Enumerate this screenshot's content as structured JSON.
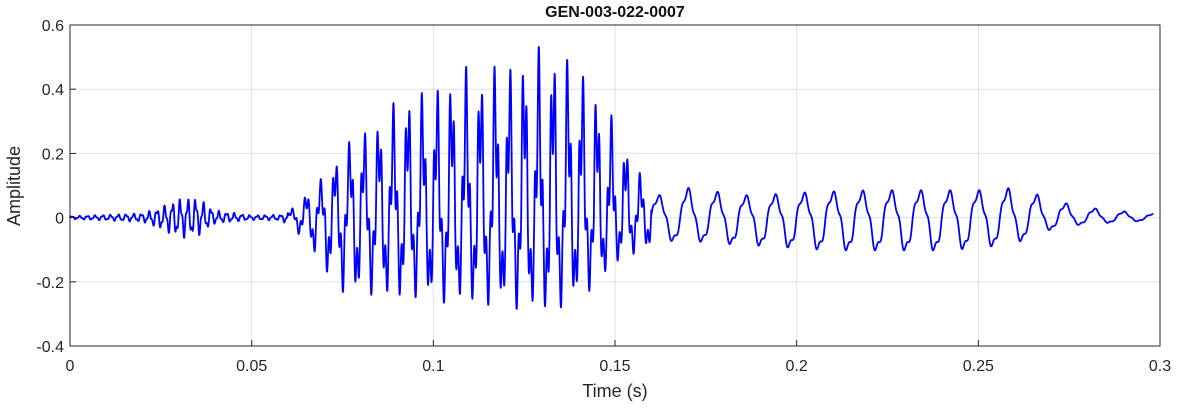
{
  "chart_data": {
    "type": "line",
    "title": "GEN-003-022-0007",
    "xlabel": "Time (s)",
    "ylabel": "Amplitude",
    "xlim": [
      0,
      0.3
    ],
    "ylim": [
      -0.4,
      0.6
    ],
    "x_ticks": [
      0,
      0.05,
      0.1,
      0.15,
      0.2,
      0.25,
      0.3
    ],
    "x_tick_labels": [
      "0",
      "0.05",
      "0.1",
      "0.15",
      "0.2",
      "0.25",
      "0.3"
    ],
    "y_ticks": [
      -0.4,
      -0.2,
      0,
      0.2,
      0.4,
      0.6
    ],
    "y_tick_labels": [
      "-0.4",
      "-0.2",
      "0",
      "0.2",
      "0.4",
      "0.6"
    ],
    "grid": true,
    "series": [
      {
        "color": "#0000ff",
        "x": [
          0,
          0.01,
          0.02,
          0.025,
          0.03,
          0.035,
          0.04,
          0.05,
          0.058,
          0.062,
          0.066,
          0.07,
          0.074,
          0.078,
          0.082,
          0.086,
          0.09,
          0.094,
          0.098,
          0.102,
          0.106,
          0.11,
          0.114,
          0.118,
          0.122,
          0.126,
          0.13,
          0.134,
          0.138,
          0.142,
          0.146,
          0.15,
          0.154,
          0.158,
          0.162,
          0.166,
          0.17,
          0.175,
          0.18,
          0.185,
          0.19,
          0.2,
          0.21,
          0.22,
          0.23,
          0.24,
          0.25,
          0.26,
          0.265,
          0.27,
          0.28,
          0.29,
          0.298
        ],
        "y": [
          0.005,
          0.01,
          0.015,
          0.035,
          0.065,
          0.07,
          0.025,
          0.008,
          0.01,
          0.035,
          0.09,
          0.13,
          0.2,
          0.26,
          0.28,
          0.32,
          0.37,
          0.4,
          0.4,
          0.42,
          0.45,
          0.48,
          0.45,
          0.5,
          0.48,
          0.52,
          0.54,
          0.53,
          0.5,
          0.45,
          0.38,
          0.3,
          0.2,
          0.12,
          0.09,
          0.1,
          0.12,
          0.11,
          0.1,
          0.09,
          0.09,
          0.1,
          0.105,
          0.11,
          0.11,
          0.11,
          0.11,
          0.12,
          0.1,
          0.07,
          0.04,
          0.025,
          0.015
        ],
        "y_min": [
          -0.005,
          -0.01,
          -0.015,
          -0.04,
          -0.07,
          -0.065,
          -0.02,
          -0.008,
          -0.01,
          -0.04,
          -0.09,
          -0.17,
          -0.23,
          -0.25,
          -0.24,
          -0.25,
          -0.26,
          -0.25,
          -0.26,
          -0.27,
          -0.26,
          -0.27,
          -0.28,
          -0.27,
          -0.29,
          -0.28,
          -0.3,
          -0.29,
          -0.27,
          -0.24,
          -0.2,
          -0.15,
          -0.12,
          -0.1,
          -0.1,
          -0.1,
          -0.11,
          -0.1,
          -0.11,
          -0.12,
          -0.12,
          -0.13,
          -0.14,
          -0.14,
          -0.14,
          -0.14,
          -0.13,
          -0.11,
          -0.08,
          -0.05,
          -0.025,
          -0.02,
          -0.01
        ]
      }
    ]
  }
}
